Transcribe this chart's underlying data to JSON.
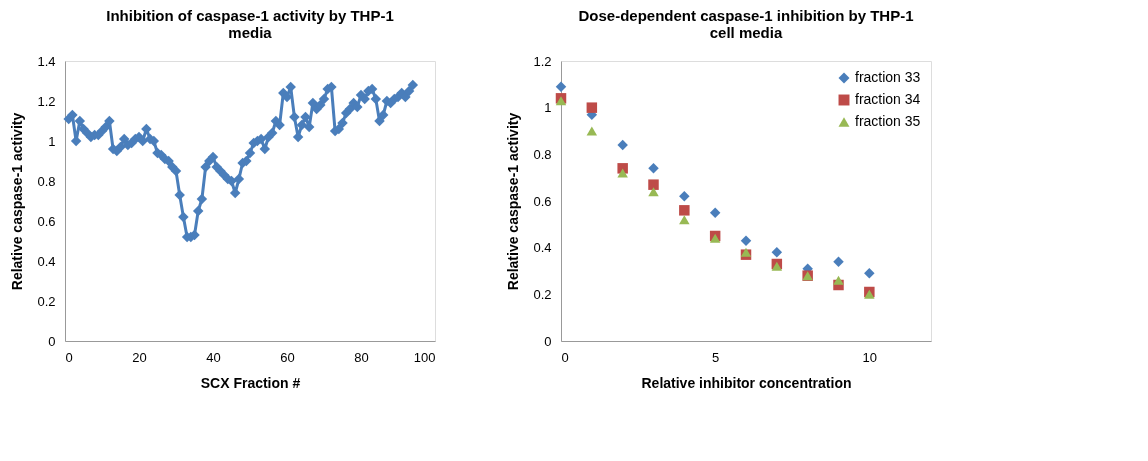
{
  "chart_data": [
    {
      "type": "line",
      "title": "Inhibition of caspase-1 activity by THP-1 media",
      "xlabel": "SCX Fraction #",
      "ylabel": "Relative caspase-1 activity",
      "x": [
        1,
        2,
        3,
        4,
        5,
        6,
        7,
        8,
        9,
        10,
        11,
        12,
        13,
        14,
        15,
        16,
        17,
        18,
        19,
        20,
        21,
        22,
        23,
        24,
        25,
        26,
        27,
        28,
        29,
        30,
        31,
        32,
        33,
        34,
        35,
        36,
        37,
        38,
        39,
        40,
        41,
        42,
        43,
        44,
        45,
        46,
        47,
        48,
        49,
        50,
        51,
        52,
        53,
        54,
        55,
        56,
        57,
        58,
        59,
        60,
        61,
        62,
        63,
        64,
        65,
        66,
        67,
        68,
        69,
        70,
        71,
        72,
        73,
        74,
        75,
        76,
        77,
        78,
        79,
        80,
        81,
        82,
        83,
        84,
        85,
        86,
        87,
        88,
        89,
        90,
        91,
        92,
        93,
        94
      ],
      "series": [
        {
          "color": "#4a7ebb",
          "values": [
            1.11,
            1.13,
            1.0,
            1.1,
            1.06,
            1.04,
            1.02,
            1.03,
            1.03,
            1.05,
            1.07,
            1.1,
            0.96,
            0.95,
            0.97,
            1.01,
            0.98,
            0.99,
            1.01,
            1.02,
            1.0,
            1.06,
            1.01,
            1.0,
            0.94,
            0.93,
            0.91,
            0.9,
            0.87,
            0.85,
            0.73,
            0.62,
            0.52,
            0.52,
            0.53,
            0.65,
            0.71,
            0.87,
            0.9,
            0.92,
            0.87,
            0.85,
            0.83,
            0.81,
            0.8,
            0.74,
            0.81,
            0.89,
            0.9,
            0.94,
            0.99,
            1.0,
            1.01,
            0.96,
            1.02,
            1.04,
            1.1,
            1.08,
            1.24,
            1.22,
            1.27,
            1.12,
            1.02,
            1.08,
            1.12,
            1.07,
            1.19,
            1.16,
            1.18,
            1.21,
            1.26,
            1.27,
            1.05,
            1.06,
            1.09,
            1.14,
            1.16,
            1.19,
            1.17,
            1.23,
            1.21,
            1.25,
            1.26,
            1.21,
            1.1,
            1.13,
            1.2,
            1.19,
            1.21,
            1.22,
            1.24,
            1.22,
            1.25,
            1.28
          ]
        }
      ],
      "marker": "diamond",
      "xlim": [
        0,
        100
      ],
      "xticks": [
        0,
        20,
        40,
        60,
        80,
        100
      ],
      "ylim": [
        0,
        1.4
      ],
      "yticks": [
        0,
        0.2,
        0.4,
        0.6,
        0.8,
        1,
        1.2,
        1.4
      ],
      "grid": false,
      "legend": false
    },
    {
      "type": "scatter",
      "title": "Dose-dependent caspase-1 inhibition by THP-1 cell media",
      "xlabel": "Relative inhibitor concentration",
      "ylabel": "Relative caspase-1 activity",
      "x": [
        0,
        1,
        2,
        3,
        4,
        5,
        6,
        7,
        8,
        9,
        10
      ],
      "series": [
        {
          "name": "fraction 33",
          "color": "#4a7ebb",
          "marker": "diamond",
          "values": [
            1.09,
            0.97,
            0.84,
            0.74,
            0.62,
            0.55,
            0.43,
            0.38,
            0.31,
            0.34,
            0.29
          ]
        },
        {
          "name": "fraction 34",
          "color": "#be4b48",
          "marker": "square",
          "values": [
            1.04,
            1.0,
            0.74,
            0.67,
            0.56,
            0.45,
            0.37,
            0.33,
            0.28,
            0.24,
            0.21
          ]
        },
        {
          "name": "fraction 35",
          "color": "#98b954",
          "marker": "triangle",
          "values": [
            1.03,
            0.9,
            0.72,
            0.64,
            0.52,
            0.44,
            0.38,
            0.32,
            0.28,
            0.26,
            0.2
          ]
        }
      ],
      "xlim": [
        0,
        12
      ],
      "xticks": [
        0,
        5,
        10
      ],
      "ylim": [
        0,
        1.2
      ],
      "yticks": [
        0,
        0.2,
        0.4,
        0.6,
        0.8,
        1,
        1.2
      ],
      "grid": false,
      "legend": "top right"
    }
  ]
}
